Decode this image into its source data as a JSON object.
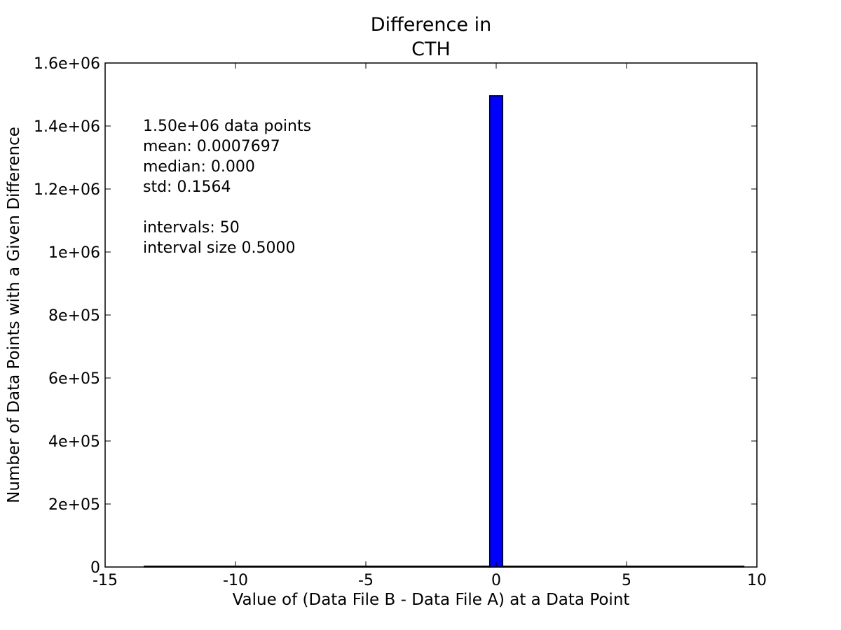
{
  "chart_data": {
    "type": "bar",
    "title": [
      "Difference in",
      "CTH"
    ],
    "xlabel": "Value of (Data File B - Data File A) at a Data Point",
    "ylabel": "Number of Data Points with a Given Difference",
    "xlim": [
      -15,
      10
    ],
    "ylim": [
      0,
      1600000
    ],
    "xticks": [
      {
        "value": -15,
        "label": "-15"
      },
      {
        "value": -10,
        "label": "-10"
      },
      {
        "value": -5,
        "label": "-5"
      },
      {
        "value": 0,
        "label": "0"
      },
      {
        "value": 5,
        "label": "5"
      },
      {
        "value": 10,
        "label": "10"
      }
    ],
    "yticks": [
      {
        "value": 0,
        "label": "0"
      },
      {
        "value": 200000,
        "label": "2e+05"
      },
      {
        "value": 400000,
        "label": "4e+05"
      },
      {
        "value": 600000,
        "label": "6e+05"
      },
      {
        "value": 800000,
        "label": "8e+05"
      },
      {
        "value": 1000000,
        "label": "1e+06"
      },
      {
        "value": 1200000,
        "label": "1.2e+06"
      },
      {
        "value": 1400000,
        "label": "1.4e+06"
      },
      {
        "value": 1600000,
        "label": "1.6e+06"
      }
    ],
    "bins": [
      {
        "x0": -13.5,
        "x1": -0.5,
        "count": 0
      },
      {
        "x0": -0.5,
        "x1": -0.25,
        "count": 2000
      },
      {
        "x0": -0.25,
        "x1": 0.25,
        "count": 1496000
      },
      {
        "x0": 0.25,
        "x1": 9.5,
        "count": 0
      }
    ],
    "bar_color": "#0000ff",
    "grid": false,
    "annotation": [
      "1.50e+06 data points",
      "mean: 0.0007697",
      "median: 0.000",
      "std: 0.1564",
      "",
      "intervals: 50",
      "interval size 0.5000"
    ]
  }
}
